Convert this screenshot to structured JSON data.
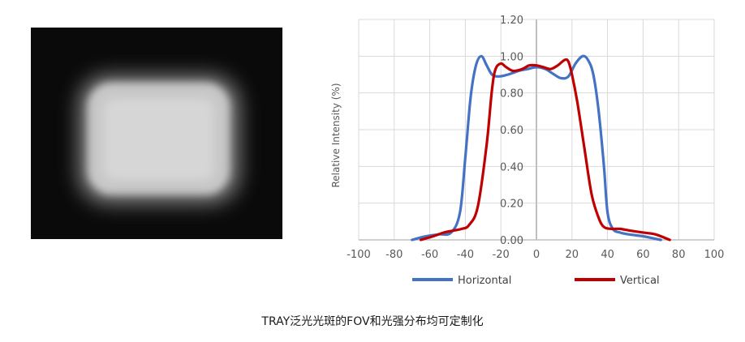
{
  "caption": "TRAY泛光光斑的FOV和光强分布均可定制化",
  "beam_image": {
    "description_icon": "beam-spot-image",
    "background": "#0a0a0a",
    "spot_color": "#c8c8c8"
  },
  "chart_data": {
    "type": "line",
    "title": "",
    "xlabel": "",
    "ylabel": "Relative Intensity (%)",
    "xlim": [
      -100,
      100
    ],
    "ylim": [
      0,
      1.2
    ],
    "xticks": [
      "-100",
      "-80",
      "-60",
      "-40",
      "-20",
      "0",
      "20",
      "40",
      "60",
      "80",
      "100"
    ],
    "yticks": [
      "0.00",
      "0.20",
      "0.40",
      "0.60",
      "0.80",
      "1.00",
      "1.20"
    ],
    "grid": true,
    "legend_position": "bottom",
    "series": [
      {
        "name": "Horizontal",
        "color": "#4472C4",
        "x": [
          -70,
          -62,
          -55,
          -48,
          -43,
          -40,
          -37,
          -34,
          -31,
          -28,
          -25,
          -21,
          -16,
          -10,
          -5,
          0,
          5,
          10,
          14,
          18,
          22,
          26,
          29,
          32,
          35,
          38,
          40,
          43,
          47,
          52,
          60,
          65,
          70
        ],
        "y": [
          0.0,
          0.02,
          0.03,
          0.04,
          0.15,
          0.45,
          0.78,
          0.95,
          1.0,
          0.95,
          0.9,
          0.89,
          0.9,
          0.92,
          0.93,
          0.94,
          0.93,
          0.9,
          0.88,
          0.89,
          0.96,
          1.0,
          0.98,
          0.9,
          0.7,
          0.4,
          0.15,
          0.06,
          0.04,
          0.03,
          0.02,
          0.01,
          0.0
        ]
      },
      {
        "name": "Vertical",
        "color": "#C00000",
        "x": [
          -65,
          -58,
          -52,
          -47,
          -42,
          -38,
          -33,
          -28,
          -25,
          -23,
          -20,
          -17,
          -13,
          -8,
          -4,
          0,
          4,
          8,
          12,
          16,
          18,
          20,
          23,
          27,
          31,
          35,
          38,
          42,
          47,
          53,
          60,
          67,
          75
        ],
        "y": [
          0.0,
          0.02,
          0.04,
          0.05,
          0.06,
          0.08,
          0.18,
          0.52,
          0.82,
          0.93,
          0.96,
          0.94,
          0.92,
          0.93,
          0.95,
          0.95,
          0.94,
          0.93,
          0.95,
          0.98,
          0.97,
          0.9,
          0.75,
          0.5,
          0.25,
          0.12,
          0.07,
          0.06,
          0.06,
          0.05,
          0.04,
          0.03,
          0.0
        ]
      }
    ]
  }
}
